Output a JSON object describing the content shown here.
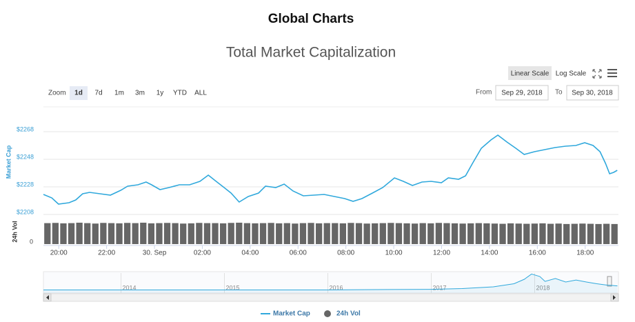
{
  "header": {
    "title": "Global Charts"
  },
  "chart_data": [
    {
      "type": "line",
      "title": "Total Market Capitalization",
      "scale_buttons": [
        "Linear Scale",
        "Log Scale"
      ],
      "scale_selected": 0,
      "zoom_label": "Zoom",
      "zoom_buttons": [
        "1d",
        "7d",
        "1m",
        "3m",
        "1y",
        "YTD",
        "ALL"
      ],
      "zoom_selected": 0,
      "from_label": "From",
      "from": "Sep 29, 2018",
      "to_label": "To",
      "to": "Sep 30, 2018",
      "y_label": "Market Cap",
      "x": [
        -4.64,
        -4.29,
        -4.01,
        -3.57,
        -3.29,
        -3,
        -2.71,
        -2.28,
        -1.84,
        -1.41,
        -1.12,
        -0.69,
        -0.35,
        -0.12,
        0.23,
        0.61,
        1.04,
        1.47,
        1.9,
        2.25,
        2.54,
        2.91,
        3.2,
        3.54,
        3.92,
        4.35,
        4.64,
        5.07,
        5.42,
        5.79,
        6.22,
        6.66,
        7.09,
        7.52,
        7.95,
        8.3,
        8.67,
        9.11,
        9.54,
        10.03,
        10.4,
        10.78,
        11.18,
        11.56,
        11.99,
        12.28,
        12.71,
        13,
        13.29,
        13.66,
        14.06,
        14.35,
        14.73,
        15.1,
        15.45,
        15.88,
        16.31,
        16.74,
        17.18,
        17.61,
        17.98,
        18.33,
        18.62,
        18.85,
        19.02,
        19.19,
        19.34
      ],
      "series": [
        {
          "name": "Market Cap",
          "color": "#2fa8dc",
          "values": [
            2222.5,
            2220,
            2215.5,
            2216.5,
            2218.5,
            2223,
            2224,
            2223,
            2222,
            2225.5,
            2228.5,
            2229.5,
            2231.5,
            2229.5,
            2226,
            2227.5,
            2229.5,
            2229.5,
            2232,
            2236.5,
            2232.5,
            2227.5,
            2223.5,
            2217,
            2221,
            2223.5,
            2228.5,
            2227.5,
            2230,
            2225,
            2221.5,
            2222,
            2222.5,
            2221,
            2219.5,
            2217.5,
            2219.5,
            2223.5,
            2227.5,
            2234.5,
            2232,
            2229,
            2231.5,
            2232,
            2231,
            2234.5,
            2233.5,
            2236,
            2245,
            2256,
            2262,
            2265.5,
            2260.5,
            2256,
            2251.5,
            2253.5,
            2255,
            2256.5,
            2257.5,
            2258,
            2260,
            2258,
            2253.5,
            2245,
            2237.5,
            2238.5,
            2240
          ]
        }
      ],
      "xlim": [
        -4.64,
        19.39
      ],
      "xticks": [
        {
          "value": -4,
          "label": "20:00"
        },
        {
          "value": -2,
          "label": "22:00"
        },
        {
          "value": 0,
          "label": "30. Sep"
        },
        {
          "value": 2,
          "label": "02:00"
        },
        {
          "value": 4,
          "label": "04:00"
        },
        {
          "value": 6,
          "label": "06:00"
        },
        {
          "value": 8,
          "label": "08:00"
        },
        {
          "value": 10,
          "label": "10:00"
        },
        {
          "value": 12,
          "label": "12:00"
        },
        {
          "value": 14,
          "label": "14:00"
        },
        {
          "value": 16,
          "label": "16:00"
        },
        {
          "value": 18,
          "label": "18:00"
        }
      ],
      "ylim": [
        2206,
        2279
      ],
      "yticks": [
        {
          "value": 2268,
          "label": "$2268"
        },
        {
          "value": 2248,
          "label": "$2248"
        },
        {
          "value": 2228,
          "label": "$2228"
        },
        {
          "value": 2208,
          "label": "$2208"
        }
      ],
      "grid": true
    },
    {
      "type": "bar",
      "y_label": "24h Vol",
      "categories": [
        null,
        null,
        null,
        null,
        null,
        null,
        null,
        null,
        null,
        null,
        null,
        null,
        null,
        null,
        null,
        null,
        null,
        null,
        null,
        null,
        null,
        null,
        null,
        null,
        null,
        null,
        null,
        null,
        null,
        null,
        null,
        null,
        null,
        null,
        null,
        null,
        null,
        null,
        null,
        null,
        null,
        null,
        null,
        null,
        null,
        null,
        null,
        null,
        null,
        null,
        null,
        null,
        null,
        null,
        null,
        null,
        null,
        null,
        null,
        null,
        null,
        null,
        null,
        null,
        null,
        null,
        null,
        null,
        null,
        null,
        null,
        null
      ],
      "series": [
        {
          "name": "24h Vol",
          "color": "#666666",
          "values": [
            95,
            96,
            94,
            95,
            97,
            95,
            93,
            96,
            95,
            94,
            96,
            95,
            97,
            94,
            95,
            96,
            95,
            93,
            94,
            96,
            95,
            95,
            94,
            96,
            97,
            95,
            94,
            95,
            96,
            94,
            95,
            93,
            95,
            96,
            94,
            95,
            95,
            94,
            96,
            95,
            93,
            94,
            95,
            96,
            95,
            94,
            93,
            95,
            94,
            96,
            95,
            94,
            93,
            94,
            95,
            94,
            93,
            92,
            94,
            93,
            92,
            93,
            94,
            92,
            93,
            91,
            92,
            93,
            92,
            91,
            92,
            91
          ]
        }
      ],
      "ylim": [
        0,
        100
      ],
      "yticks": [
        0
      ]
    },
    {
      "type": "line",
      "color": "#2fa8dc",
      "x": [
        2013.25,
        2014,
        2015,
        2016,
        2016.6,
        2017,
        2017.3,
        2017.6,
        2017.8,
        2017.9,
        2017.97,
        2018.05,
        2018.1,
        2018.2,
        2018.3,
        2018.4,
        2018.5,
        2018.6,
        2018.7,
        2018.8
      ],
      "values": [
        8,
        8,
        10,
        12,
        30,
        40,
        80,
        170,
        330,
        560,
        830,
        700,
        450,
        600,
        420,
        520,
        420,
        330,
        260,
        220
      ],
      "xlim": [
        2013.25,
        2018.81
      ],
      "xticks": [
        2014,
        2015,
        2016,
        2017,
        2018
      ],
      "ylim": [
        -150,
        880
      ]
    }
  ]
}
